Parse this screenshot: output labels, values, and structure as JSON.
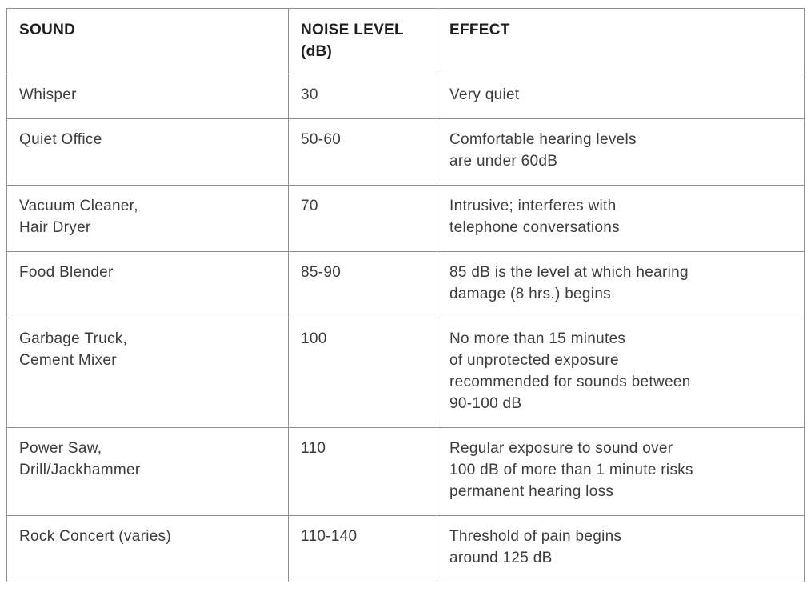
{
  "table": {
    "name": "sound-noise-level-effect-table",
    "border_color": "#8f8f8f",
    "text_color": "#3c3c3c",
    "header_text_color": "#1e1e1e",
    "columns": [
      {
        "key": "sound",
        "label": "SOUND"
      },
      {
        "key": "noise_level",
        "label": "NOISE LEVEL\n(dB)"
      },
      {
        "key": "effect",
        "label": "EFFECT"
      }
    ],
    "rows": [
      {
        "sound": "Whisper",
        "noise_level": "30",
        "effect": "Very quiet"
      },
      {
        "sound": "Quiet Office",
        "noise_level": "50-60",
        "effect": "Comfortable hearing levels\nare under 60dB"
      },
      {
        "sound": "Vacuum Cleaner,\nHair Dryer",
        "noise_level": "70",
        "effect": "Intrusive; interferes with\ntelephone conversations"
      },
      {
        "sound": "Food Blender",
        "noise_level": "85-90",
        "effect": "85 dB is the level at which hearing\ndamage (8 hrs.) begins"
      },
      {
        "sound": "Garbage Truck,\nCement Mixer",
        "noise_level": "100",
        "effect": "No more than 15 minutes\nof unprotected exposure\nrecommended for sounds between\n90-100 dB"
      },
      {
        "sound": "Power Saw,\nDrill/Jackhammer",
        "noise_level": "110",
        "effect": "Regular exposure to sound over\n100 dB of more than 1 minute risks\npermanent hearing loss"
      },
      {
        "sound": "Rock Concert (varies)",
        "noise_level": "110-140",
        "effect": "Threshold of pain begins\naround 125 dB"
      }
    ]
  }
}
